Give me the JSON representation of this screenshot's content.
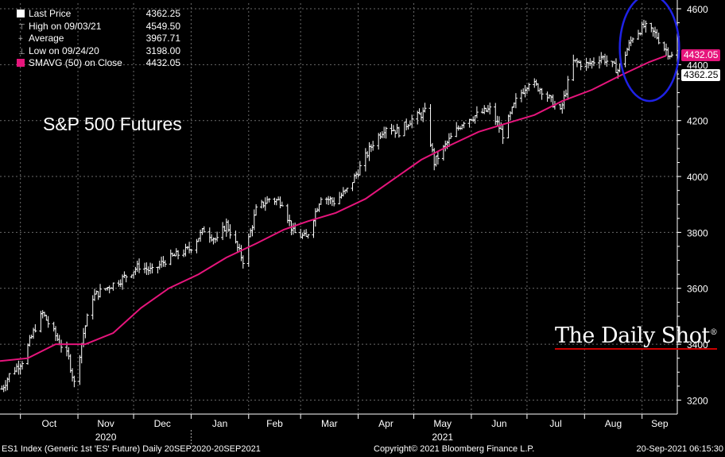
{
  "chart_data": {
    "type": "ohlc",
    "title": "S&P 500 Futures",
    "ylim": [
      3150,
      4620
    ],
    "yticks": [
      3200,
      3400,
      3600,
      3800,
      4000,
      4200,
      4400,
      4600
    ],
    "month_labels": [
      "Oct",
      "Nov",
      "Dec",
      "Jan",
      "Feb",
      "Mar",
      "Apr",
      "May",
      "Jun",
      "Jul",
      "Aug",
      "Sep"
    ],
    "year_labels": [
      {
        "label": "2020",
        "month": "Nov"
      },
      {
        "label": "2021",
        "month": "May"
      }
    ],
    "x_start": "2020-09-20",
    "x_end": "2021-09-20",
    "series": [
      {
        "name": "Last Price",
        "color": "#ffffff",
        "x": [
          "2020-09-21",
          "2020-09-25",
          "2020-10-02",
          "2020-10-09",
          "2020-10-13",
          "2020-10-20",
          "2020-10-27",
          "2020-10-30",
          "2020-11-04",
          "2020-11-09",
          "2020-11-16",
          "2020-11-24",
          "2020-12-04",
          "2020-12-11",
          "2020-12-18",
          "2020-12-31",
          "2021-01-08",
          "2021-01-15",
          "2021-01-20",
          "2021-01-29",
          "2021-02-05",
          "2021-02-12",
          "2021-02-19",
          "2021-02-25",
          "2021-03-04",
          "2021-03-12",
          "2021-03-19",
          "2021-03-26",
          "2021-04-01",
          "2021-04-09",
          "2021-04-16",
          "2021-04-23",
          "2021-04-29",
          "2021-05-07",
          "2021-05-12",
          "2021-05-19",
          "2021-05-28",
          "2021-06-04",
          "2021-06-11",
          "2021-06-18",
          "2021-06-25",
          "2021-07-02",
          "2021-07-09",
          "2021-07-19",
          "2021-07-26",
          "2021-08-03",
          "2021-08-10",
          "2021-08-19",
          "2021-08-27",
          "2021-09-02",
          "2021-09-08",
          "2021-09-13",
          "2021-09-17",
          "2021-09-20"
        ],
        "values": [
          3240,
          3290,
          3340,
          3460,
          3510,
          3430,
          3350,
          3260,
          3440,
          3570,
          3600,
          3630,
          3680,
          3660,
          3700,
          3740,
          3810,
          3770,
          3830,
          3700,
          3880,
          3920,
          3910,
          3800,
          3780,
          3930,
          3910,
          3950,
          4020,
          4120,
          4180,
          4160,
          4200,
          4230,
          4050,
          4120,
          4200,
          4220,
          4240,
          4150,
          4270,
          4340,
          4310,
          4230,
          4410,
          4400,
          4430,
          4380,
          4500,
          4537,
          4510,
          4460,
          4430,
          4362.25
        ]
      },
      {
        "name": "SMAVG (50) on Close",
        "color": "#e6157c",
        "x": [
          "2020-09-20",
          "2020-10-05",
          "2020-10-20",
          "2020-11-05",
          "2020-11-20",
          "2020-12-05",
          "2020-12-20",
          "2021-01-05",
          "2021-01-20",
          "2021-02-05",
          "2021-02-20",
          "2021-03-05",
          "2021-03-20",
          "2021-04-05",
          "2021-04-20",
          "2021-05-05",
          "2021-05-20",
          "2021-06-05",
          "2021-06-20",
          "2021-07-05",
          "2021-07-20",
          "2021-08-05",
          "2021-08-20",
          "2021-09-05",
          "2021-09-14"
        ],
        "values": [
          3340,
          3350,
          3400,
          3400,
          3440,
          3530,
          3600,
          3650,
          3710,
          3760,
          3810,
          3840,
          3870,
          3920,
          3990,
          4060,
          4110,
          4160,
          4190,
          4220,
          4270,
          4310,
          4360,
          4410,
          4432.05
        ]
      }
    ],
    "price_tags": [
      {
        "value": "4432.05",
        "price": 4432.05,
        "bg": "#e6157c",
        "fg": "#ffffff"
      },
      {
        "value": "4362.25",
        "price": 4362.25,
        "bg": "#ffffff",
        "fg": "#000000"
      }
    ],
    "annotation": {
      "type": "ellipse",
      "color": "#1f22e6",
      "x_center": "2021-09-05",
      "y_center": 4460,
      "x_radius_days": 16,
      "y_radius": 190
    }
  },
  "legend": [
    {
      "label": "Last Price",
      "value": "4362.25",
      "swatch": "#ffffff",
      "sub": ""
    },
    {
      "label": "High on 09/03/21",
      "value": "4549.50",
      "swatch": "",
      "sub": "T"
    },
    {
      "label": "Average",
      "value": "3967.71",
      "swatch": "",
      "sub": "+"
    },
    {
      "label": "Low on 09/24/20",
      "value": "3198.00",
      "swatch": "",
      "sub": "⊥"
    },
    {
      "label": "SMAVG (50)  on Close",
      "value": "4432.05",
      "swatch": "#e6157c",
      "sub": ""
    }
  ],
  "brand": "The Daily Shot",
  "footer": {
    "left": "ES1 Index (Generic 1st 'ES' Future)  Daily 20SEP2020-20SEP2021",
    "center": "Copyright© 2021 Bloomberg Finance L.P.",
    "right": "20-Sep-2021 06:15:30"
  }
}
